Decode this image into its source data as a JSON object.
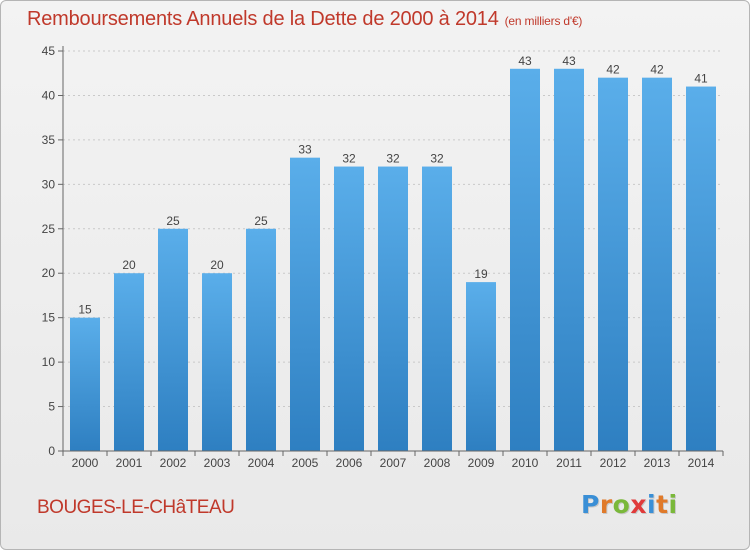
{
  "header": {
    "title": "Remboursements Annuels de la Dette de 2000 à 2014",
    "unit": "(en milliers d'€)"
  },
  "footer": {
    "town": "BOUGES-LE-CHâTEAU",
    "logo_text": "Proxiti"
  },
  "colors": {
    "title": "#c0392b",
    "bar_top": "#5aaeea",
    "bar_bottom": "#2e7fc1"
  },
  "chart_data": {
    "type": "bar",
    "title": "Remboursements Annuels de la Dette de 2000 à 2014",
    "xlabel": "",
    "ylabel": "(en milliers d'€)",
    "categories": [
      "2000",
      "2001",
      "2002",
      "2003",
      "2004",
      "2005",
      "2006",
      "2007",
      "2008",
      "2009",
      "2010",
      "2011",
      "2012",
      "2013",
      "2014"
    ],
    "values": [
      15,
      20,
      25,
      20,
      25,
      33,
      32,
      32,
      32,
      19,
      43,
      43,
      42,
      42,
      41
    ],
    "ylim": [
      0,
      45
    ],
    "yticks": [
      0,
      5,
      10,
      15,
      20,
      25,
      30,
      35,
      40,
      45
    ],
    "grid": true
  }
}
